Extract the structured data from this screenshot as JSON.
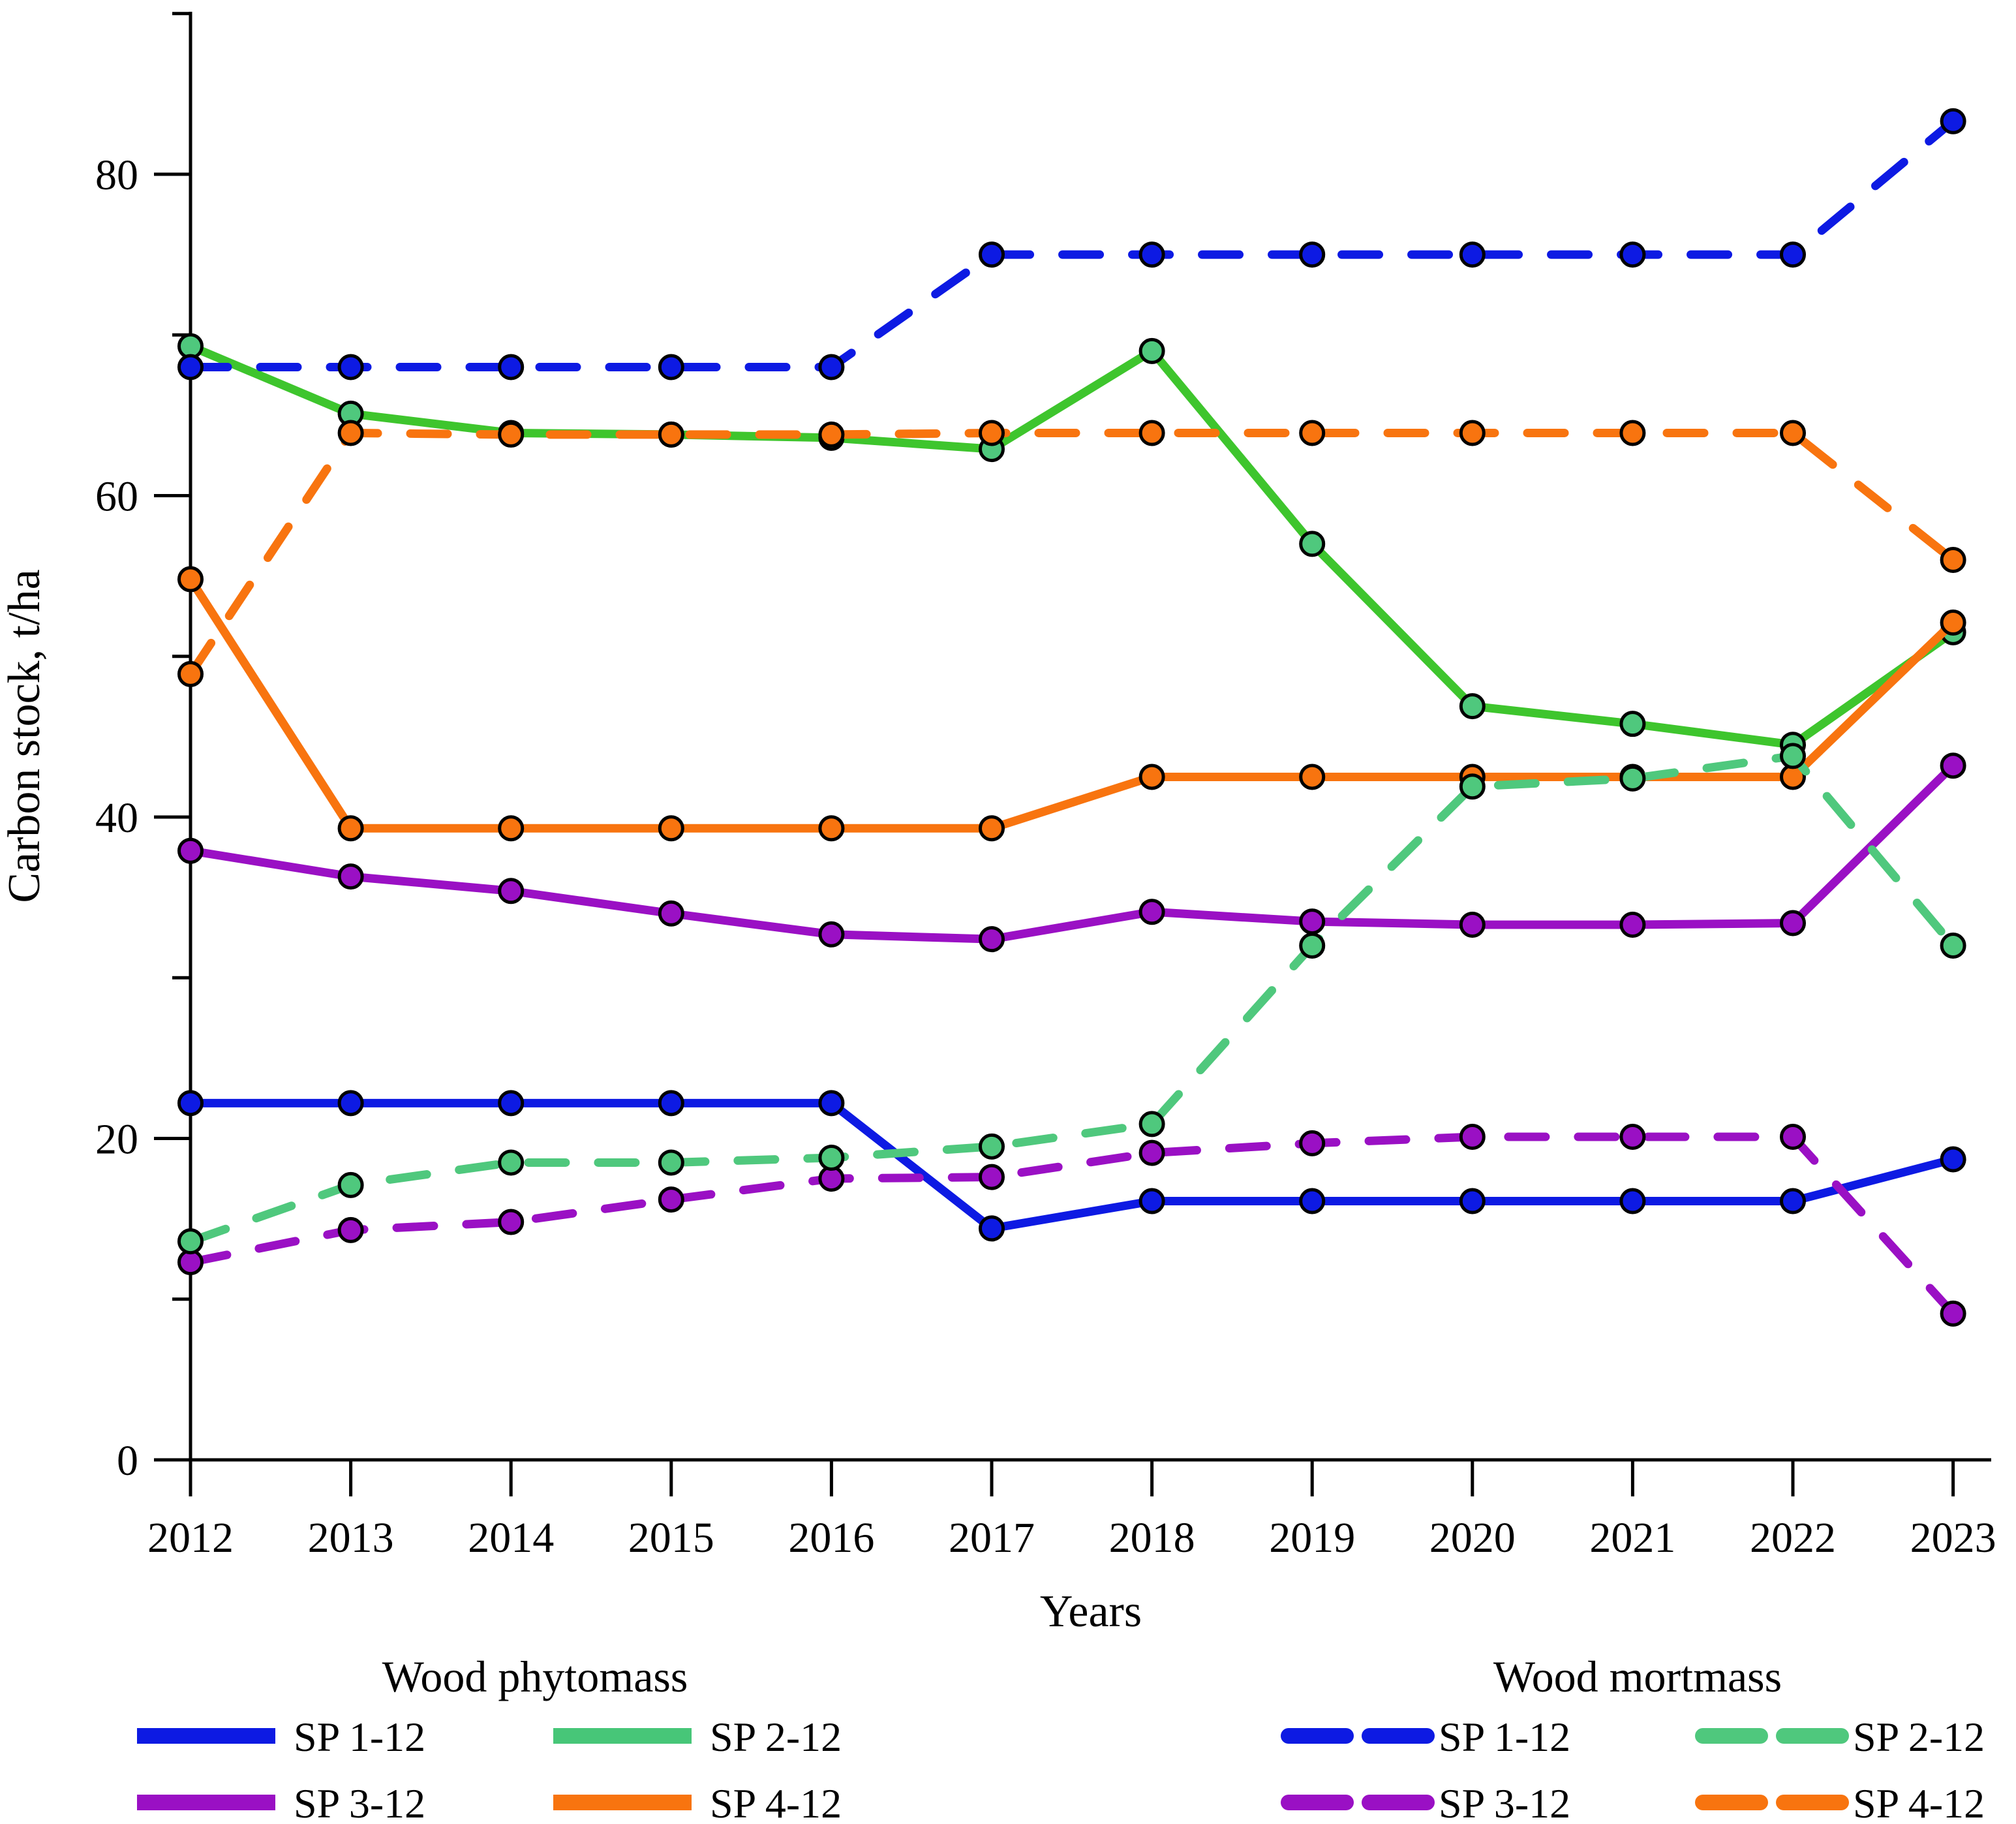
{
  "page": {
    "background": "#ffffff"
  },
  "axes": {
    "y": {
      "label": "Carbon stock, t/ha",
      "ticks": [
        0,
        20,
        40,
        60,
        80
      ],
      "minor_ticks": [
        10,
        30,
        50,
        70,
        90
      ],
      "range": [
        0,
        89
      ]
    },
    "x": {
      "label": "Years",
      "ticks": [
        2012,
        2013,
        2014,
        2015,
        2016,
        2017,
        2018,
        2019,
        2020,
        2021,
        2022,
        2023
      ]
    }
  },
  "legend": {
    "groups": [
      {
        "title": "Wood phytomass",
        "style": "solid",
        "items": [
          {
            "label": "SP 1-12",
            "color": "#0d1ae3"
          },
          {
            "label": "SP 2-12",
            "color": "#3ec52d",
            "swatch_color": "#47c678"
          },
          {
            "label": "SP 3-12",
            "color": "#9a10c4"
          },
          {
            "label": "SP 4-12",
            "color": "#f8740f"
          }
        ]
      },
      {
        "title": "Wood mortmass",
        "style": "dashed",
        "items": [
          {
            "label": "SP 1-12",
            "color": "#0d1ae3"
          },
          {
            "label": "SP 2-12",
            "color": "#4fc87d"
          },
          {
            "label": "SP 3-12",
            "color": "#9a10c4"
          },
          {
            "label": "SP 4-12",
            "color": "#f8740f"
          }
        ]
      }
    ]
  },
  "chart_data": {
    "type": "line",
    "title": "",
    "xlabel": "Years",
    "ylabel": "Carbon stock, t/ha",
    "x": [
      2012,
      2013,
      2014,
      2015,
      2016,
      2017,
      2018,
      2019,
      2020,
      2021,
      2022,
      2023
    ],
    "ylim": [
      0,
      89
    ],
    "yticks": [
      0,
      20,
      40,
      60,
      80
    ],
    "grid": false,
    "legend_position": "bottom",
    "series": [
      {
        "name": "Wood phytomass SP 1-12",
        "group": "Wood phytomass",
        "label": "SP 1-12",
        "style": "solid",
        "color": "#0d1ae3",
        "values": [
          22.2,
          22.2,
          22.2,
          22.2,
          22.2,
          14.4,
          16.1,
          16.1,
          16.1,
          16.1,
          16.1,
          18.7
        ]
      },
      {
        "name": "Wood phytomass SP 3-12",
        "group": "Wood phytomass",
        "label": "SP 3-12",
        "style": "solid",
        "color": "#9a10c4",
        "values": [
          37.9,
          36.3,
          35.4,
          34.0,
          32.7,
          32.4,
          34.1,
          33.5,
          33.3,
          33.3,
          33.4,
          43.2
        ]
      },
      {
        "name": "Wood phytomass SP 2-12",
        "group": "Wood phytomass",
        "label": "SP 2-12",
        "style": "solid",
        "color": "#3ec52d",
        "marker_color": "#4fc87d",
        "values": [
          69.3,
          65.1,
          63.9,
          63.8,
          63.6,
          62.9,
          69.0,
          57.0,
          46.9,
          45.8,
          44.5,
          51.5
        ]
      },
      {
        "name": "Wood phytomass SP 4-12",
        "group": "Wood phytomass",
        "label": "SP 4-12",
        "style": "solid",
        "color": "#f8740f",
        "values": [
          54.8,
          39.3,
          39.3,
          39.3,
          39.3,
          39.3,
          42.5,
          42.5,
          42.5,
          42.5,
          42.5,
          52.1
        ]
      },
      {
        "name": "Wood mortmass SP 1-12",
        "group": "Wood mortmass",
        "label": "SP 1-12",
        "style": "dashed",
        "color": "#0d1ae3",
        "values": [
          68.0,
          68.0,
          68.0,
          68.0,
          68.0,
          75.0,
          75.0,
          75.0,
          75.0,
          75.0,
          75.0,
          83.3
        ]
      },
      {
        "name": "Wood mortmass SP 3-12",
        "group": "Wood mortmass",
        "label": "SP 3-12",
        "style": "dashed",
        "color": "#9a10c4",
        "values": [
          12.3,
          14.3,
          14.8,
          16.2,
          17.5,
          17.6,
          19.1,
          19.7,
          20.1,
          20.1,
          20.1,
          9.1
        ]
      },
      {
        "name": "Wood mortmass SP 4-12",
        "group": "Wood mortmass",
        "label": "SP 4-12",
        "style": "dashed",
        "color": "#f8740f",
        "values": [
          48.9,
          63.9,
          63.8,
          63.8,
          63.8,
          63.9,
          63.9,
          63.9,
          63.9,
          63.9,
          63.9,
          56.0
        ]
      },
      {
        "name": "Wood mortmass SP 2-12",
        "group": "Wood mortmass",
        "label": "SP 2-12",
        "style": "dashed",
        "color": "#4fc87d",
        "values": [
          13.6,
          17.1,
          18.5,
          18.5,
          18.8,
          19.5,
          20.9,
          32.0,
          41.9,
          42.4,
          43.8,
          32.0
        ]
      }
    ]
  }
}
